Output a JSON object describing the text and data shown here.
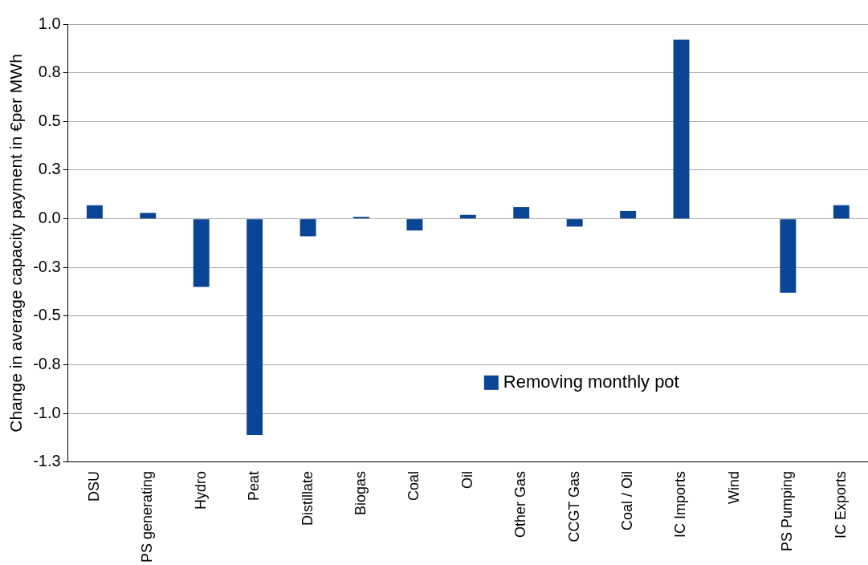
{
  "chart_data": {
    "type": "bar",
    "ylabel": "Change in average capacity payment in €per MWh",
    "categories": [
      "DSU",
      "PS generating",
      "Hydro",
      "Peat",
      "Distillate",
      "Biogas",
      "Coal",
      "Oil",
      "Other Gas",
      "CCGT Gas",
      "Coal / Oil",
      "IC Imports",
      "Wind",
      "PS Pumping",
      "IC Exports"
    ],
    "series": [
      {
        "name": "Removing monthly pot",
        "color": "#0a4595",
        "values": [
          0.07,
          0.03,
          -0.35,
          -1.11,
          -0.09,
          0.01,
          -0.06,
          0.02,
          0.06,
          -0.04,
          0.04,
          0.92,
          0,
          -0.38,
          0.07
        ]
      }
    ],
    "ylim": [
      -1.25,
      1.0
    ],
    "yticks": [
      {
        "value": 1.0,
        "label": "1.0"
      },
      {
        "value": 0.75,
        "label": "0.8"
      },
      {
        "value": 0.5,
        "label": "0.5"
      },
      {
        "value": 0.25,
        "label": "0.3"
      },
      {
        "value": 0,
        "label": "0.0"
      },
      {
        "value": -0.25,
        "label": "-0.3"
      },
      {
        "value": -0.5,
        "label": "-0.5"
      },
      {
        "value": -0.75,
        "label": "-0.8"
      },
      {
        "value": -1.0,
        "label": "-1.0"
      },
      {
        "value": -1.25,
        "label": "-1.3"
      }
    ],
    "grid": "y",
    "legend": "bottom right"
  }
}
